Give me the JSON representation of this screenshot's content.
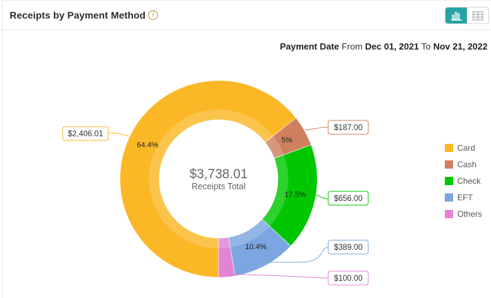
{
  "header": {
    "title": "Receipts by Payment Method",
    "info_icon": "info-icon",
    "view_toggle": [
      {
        "name": "chart-view",
        "icon": "bar-chart-icon",
        "active": true
      },
      {
        "name": "table-view",
        "icon": "table-grid-icon",
        "active": false
      }
    ]
  },
  "date_range": {
    "label": "Payment Date",
    "from_word": "From",
    "from": "Dec 01, 2021",
    "to_word": "To",
    "to": "Nov 21, 2022"
  },
  "center": {
    "total": "$3,738.01",
    "label": "Receipts Total"
  },
  "legend": [
    {
      "label": "Card",
      "color": "#FBB725"
    },
    {
      "label": "Cash",
      "color": "#D0805E"
    },
    {
      "label": "Check",
      "color": "#00C700"
    },
    {
      "label": "EFT",
      "color": "#7BA6E1"
    },
    {
      "label": "Others",
      "color": "#E283D6"
    }
  ],
  "chart_data": {
    "type": "pie",
    "variant": "donut",
    "title": "Receipts by Payment Method",
    "subtitle": "Payment Date From Dec 01, 2021 To Nov 21, 2022",
    "center_text": "$3,738.01 Receipts Total",
    "total": 3738.01,
    "categories": [
      "Card",
      "Cash",
      "Check",
      "EFT",
      "Others"
    ],
    "values": [
      2406.01,
      187.0,
      656.0,
      389.0,
      100.0
    ],
    "percent_labels": [
      "64.4%",
      "5%",
      "17.5%",
      "10.4%",
      ""
    ],
    "value_labels": [
      "$2,406.01",
      "$187.00",
      "$656.00",
      "$389.00",
      "$100.00"
    ],
    "colors": [
      "#FBB725",
      "#D0805E",
      "#00C700",
      "#7BA6E1",
      "#E283D6"
    ],
    "legend_position": "right",
    "start_angle_deg": 180,
    "direction": "clockwise"
  }
}
